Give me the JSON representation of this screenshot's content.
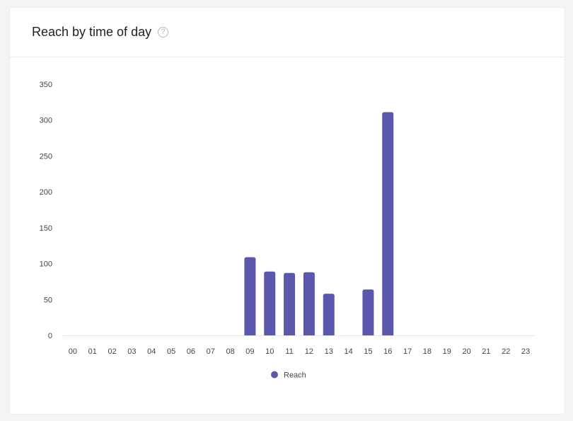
{
  "card": {
    "title": "Reach by time of day",
    "help_icon": "question-circle-icon"
  },
  "chart_data": {
    "type": "bar",
    "categories": [
      "00",
      "01",
      "02",
      "03",
      "04",
      "05",
      "06",
      "07",
      "08",
      "09",
      "10",
      "11",
      "12",
      "13",
      "14",
      "15",
      "16",
      "17",
      "18",
      "19",
      "20",
      "21",
      "22",
      "23"
    ],
    "series": [
      {
        "name": "Reach",
        "color": "#5b57ad",
        "values": [
          0,
          0,
          0,
          0,
          0,
          0,
          0,
          0,
          0,
          109,
          89,
          87,
          88,
          58,
          0,
          64,
          311,
          0,
          0,
          0,
          0,
          0,
          0,
          0
        ]
      }
    ],
    "y_ticks": [
      "0",
      "50",
      "100",
      "150",
      "200",
      "250",
      "300",
      "350"
    ],
    "ylim": [
      0,
      350
    ],
    "grid": false,
    "legend_position": "bottom-center"
  }
}
